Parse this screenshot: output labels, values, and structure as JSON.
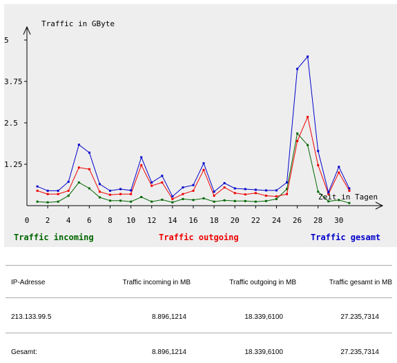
{
  "chart_data": {
    "type": "line",
    "ylabel": "Traffic in GByte",
    "xlabel": "Zeit in Tagen",
    "ylim": [
      0,
      5
    ],
    "xlim": [
      0,
      32
    ],
    "yticks": [
      5,
      3.75,
      2.5,
      1.25
    ],
    "ytick_labels": [
      "5",
      "3.75",
      "2.5",
      "1.25"
    ],
    "xticks": [
      0,
      2,
      4,
      6,
      8,
      10,
      12,
      14,
      16,
      18,
      20,
      22,
      24,
      26,
      28,
      30
    ],
    "xtick_labels": [
      "0",
      "2",
      "4",
      "6",
      "8",
      "10",
      "12",
      "14",
      "16",
      "18",
      "20",
      "22",
      "24",
      "26",
      "28",
      "30"
    ],
    "x": [
      1,
      2,
      3,
      4,
      5,
      6,
      7,
      8,
      9,
      10,
      11,
      12,
      13,
      14,
      15,
      16,
      17,
      18,
      19,
      20,
      21,
      22,
      23,
      24,
      25,
      26,
      27,
      28,
      29,
      30,
      31
    ],
    "series": [
      {
        "name": "Traffic incoming",
        "color": "#006600",
        "values": [
          0.12,
          0.1,
          0.12,
          0.3,
          0.7,
          0.52,
          0.25,
          0.15,
          0.15,
          0.12,
          0.26,
          0.12,
          0.18,
          0.1,
          0.2,
          0.17,
          0.22,
          0.12,
          0.16,
          0.14,
          0.14,
          0.12,
          0.14,
          0.2,
          0.5,
          2.18,
          1.83,
          0.42,
          0.13,
          0.17,
          0.08
        ]
      },
      {
        "name": "Traffic outgoing",
        "color": "#ee0000",
        "values": [
          0.45,
          0.35,
          0.35,
          0.45,
          1.15,
          1.1,
          0.42,
          0.33,
          0.35,
          0.35,
          1.22,
          0.6,
          0.7,
          0.2,
          0.35,
          0.45,
          1.08,
          0.3,
          0.55,
          0.38,
          0.34,
          0.38,
          0.3,
          0.28,
          0.35,
          1.95,
          2.68,
          1.22,
          0.35,
          1,
          0.45
        ]
      },
      {
        "name": "Traffic gesamt",
        "color": "#0000cc",
        "values": [
          0.58,
          0.45,
          0.45,
          0.72,
          1.84,
          1.6,
          0.65,
          0.45,
          0.5,
          0.46,
          1.46,
          0.7,
          0.9,
          0.28,
          0.55,
          0.62,
          1.28,
          0.42,
          0.68,
          0.52,
          0.5,
          0.48,
          0.46,
          0.46,
          0.7,
          4.13,
          4.5,
          1.65,
          0.4,
          1.17,
          0.52
        ]
      }
    ]
  },
  "legend": {
    "incoming": "Traffic incoming",
    "outgoing": "Traffic outgoing",
    "gesamt": "Traffic gesamt",
    "incoming_color": "#006600",
    "outgoing_color": "#ee0000",
    "gesamt_color": "#0000cc"
  },
  "stats": {
    "headers": [
      "IP-Adresse",
      "Traffic incoming in MB",
      "Traffic outgoing in MB",
      "Traffic gesamt in MB"
    ],
    "rows": [
      [
        "213.133.99.5",
        "8.896,1214",
        "18.339,6100",
        "27.235,7314"
      ],
      [
        "Gesamt:",
        "8.896,1214",
        "18.339,6100",
        "27.235,7314"
      ]
    ]
  }
}
